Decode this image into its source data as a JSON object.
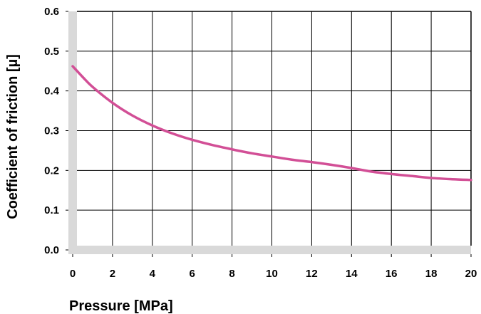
{
  "chart_data": {
    "type": "line",
    "xlabel": "Pressure [MPa]",
    "ylabel": "Coefficient of friction  [µ]",
    "xlim": [
      0,
      20
    ],
    "ylim": [
      0,
      0.6
    ],
    "x_ticks": [
      "0",
      "2",
      "4",
      "6",
      "8",
      "10",
      "12",
      "14",
      "16",
      "18",
      "20"
    ],
    "y_ticks": [
      "0.0",
      "0.1",
      "0.2",
      "0.3",
      "0.4",
      "0.5",
      "0.6"
    ],
    "grid": true,
    "legend": "none",
    "series": [
      {
        "color": "#d24f96",
        "x": [
          0,
          0.5,
          1,
          2,
          3,
          4,
          5,
          6,
          7,
          8,
          9,
          10,
          11,
          12,
          13,
          14,
          15,
          16,
          17,
          18,
          19,
          20
        ],
        "y": [
          0.462,
          0.435,
          0.41,
          0.37,
          0.338,
          0.313,
          0.293,
          0.277,
          0.264,
          0.253,
          0.243,
          0.235,
          0.227,
          0.221,
          0.214,
          0.206,
          0.197,
          0.191,
          0.186,
          0.181,
          0.178,
          0.176
        ]
      }
    ],
    "colors": {
      "axis_band": "#d9d9d9",
      "grid": "#000000"
    }
  }
}
